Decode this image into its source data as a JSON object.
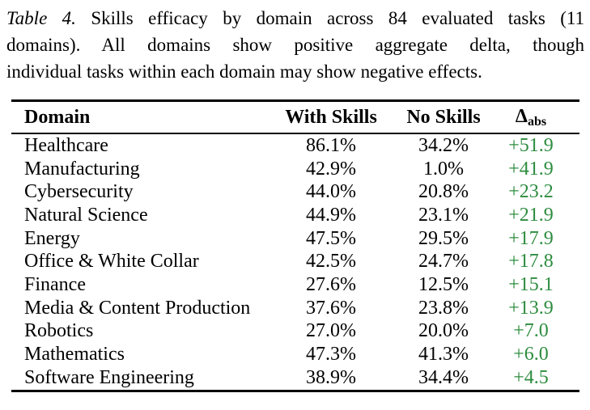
{
  "caption": {
    "label": "Table 4.",
    "line1_rest": "Skills efficacy by domain across 84 evaluated tasks (11",
    "line2": "domains).  All domains show positive aggregate delta, though",
    "line3": "individual tasks within each domain may show negative effects."
  },
  "table": {
    "headers": {
      "domain": "Domain",
      "with_skills": "With Skills",
      "no_skills": "No Skills",
      "delta_symbol": "Δ",
      "delta_subscript": "abs"
    },
    "rows": [
      {
        "domain": "Healthcare",
        "with_skills": "86.1%",
        "no_skills": "34.2%",
        "delta": "+51.9"
      },
      {
        "domain": "Manufacturing",
        "with_skills": "42.9%",
        "no_skills": "1.0%",
        "delta": "+41.9"
      },
      {
        "domain": "Cybersecurity",
        "with_skills": "44.0%",
        "no_skills": "20.8%",
        "delta": "+23.2"
      },
      {
        "domain": "Natural Science",
        "with_skills": "44.9%",
        "no_skills": "23.1%",
        "delta": "+21.9"
      },
      {
        "domain": "Energy",
        "with_skills": "47.5%",
        "no_skills": "29.5%",
        "delta": "+17.9"
      },
      {
        "domain": "Office & White Collar",
        "with_skills": "42.5%",
        "no_skills": "24.7%",
        "delta": "+17.8"
      },
      {
        "domain": "Finance",
        "with_skills": "27.6%",
        "no_skills": "12.5%",
        "delta": "+15.1"
      },
      {
        "domain": "Media & Content Production",
        "with_skills": "37.6%",
        "no_skills": "23.8%",
        "delta": "+13.9"
      },
      {
        "domain": "Robotics",
        "with_skills": "27.0%",
        "no_skills": "20.0%",
        "delta": "+7.0"
      },
      {
        "domain": "Mathematics",
        "with_skills": "47.3%",
        "no_skills": "41.3%",
        "delta": "+6.0"
      },
      {
        "domain": "Software Engineering",
        "with_skills": "38.9%",
        "no_skills": "34.4%",
        "delta": "+4.5"
      }
    ]
  },
  "colors": {
    "text": "#000000",
    "delta_positive": "#2d8c3f"
  }
}
